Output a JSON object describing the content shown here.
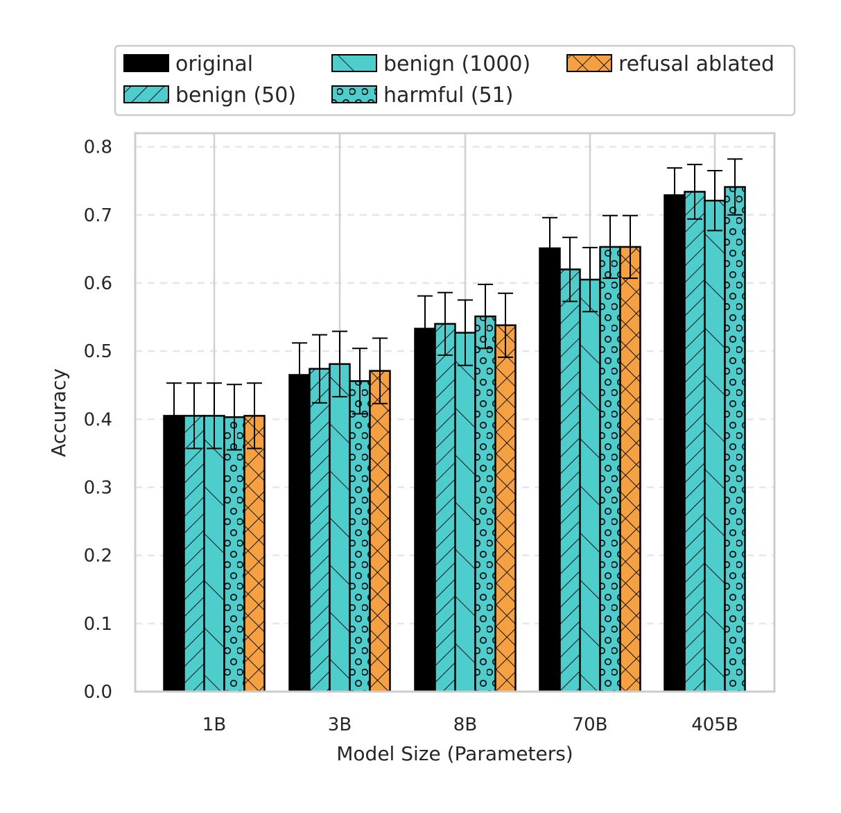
{
  "chart_data": {
    "type": "bar",
    "title": "",
    "xlabel": "Model Size (Parameters)",
    "ylabel": "Accuracy",
    "ylim": [
      0,
      0.82
    ],
    "yticks": [
      "0.0",
      "0.1",
      "0.2",
      "0.3",
      "0.4",
      "0.5",
      "0.6",
      "0.7",
      "0.8"
    ],
    "categories": [
      "1B",
      "3B",
      "8B",
      "70B",
      "405B"
    ],
    "grid": "on",
    "legend_position": "top",
    "series": [
      {
        "name": "original",
        "color": "#000000",
        "hatch": "none",
        "values": [
          0.405,
          0.465,
          0.533,
          0.651,
          0.729
        ],
        "errors": [
          0.048,
          0.047,
          0.048,
          0.045,
          0.04
        ]
      },
      {
        "name": "benign (50)",
        "color": "#4ecdcd",
        "hatch": "diagonal",
        "values": [
          0.405,
          0.474,
          0.54,
          0.62,
          0.734
        ],
        "errors": [
          0.048,
          0.05,
          0.046,
          0.047,
          0.04
        ]
      },
      {
        "name": "benign (1000)",
        "color": "#4ecdcd",
        "hatch": "backslash",
        "values": [
          0.405,
          0.481,
          0.527,
          0.605,
          0.721
        ],
        "errors": [
          0.048,
          0.048,
          0.048,
          0.047,
          0.044
        ]
      },
      {
        "name": "harmful (51)",
        "color": "#4ecdcd",
        "hatch": "circles",
        "values": [
          0.403,
          0.456,
          0.551,
          0.653,
          0.741
        ],
        "errors": [
          0.048,
          0.048,
          0.047,
          0.046,
          0.041
        ]
      },
      {
        "name": "refusal ablated",
        "color": "#f5a142",
        "hatch": "crosshatch",
        "values": [
          0.405,
          0.471,
          0.538,
          0.653,
          null
        ],
        "errors": [
          0.048,
          0.048,
          0.047,
          0.046,
          null
        ]
      }
    ]
  }
}
